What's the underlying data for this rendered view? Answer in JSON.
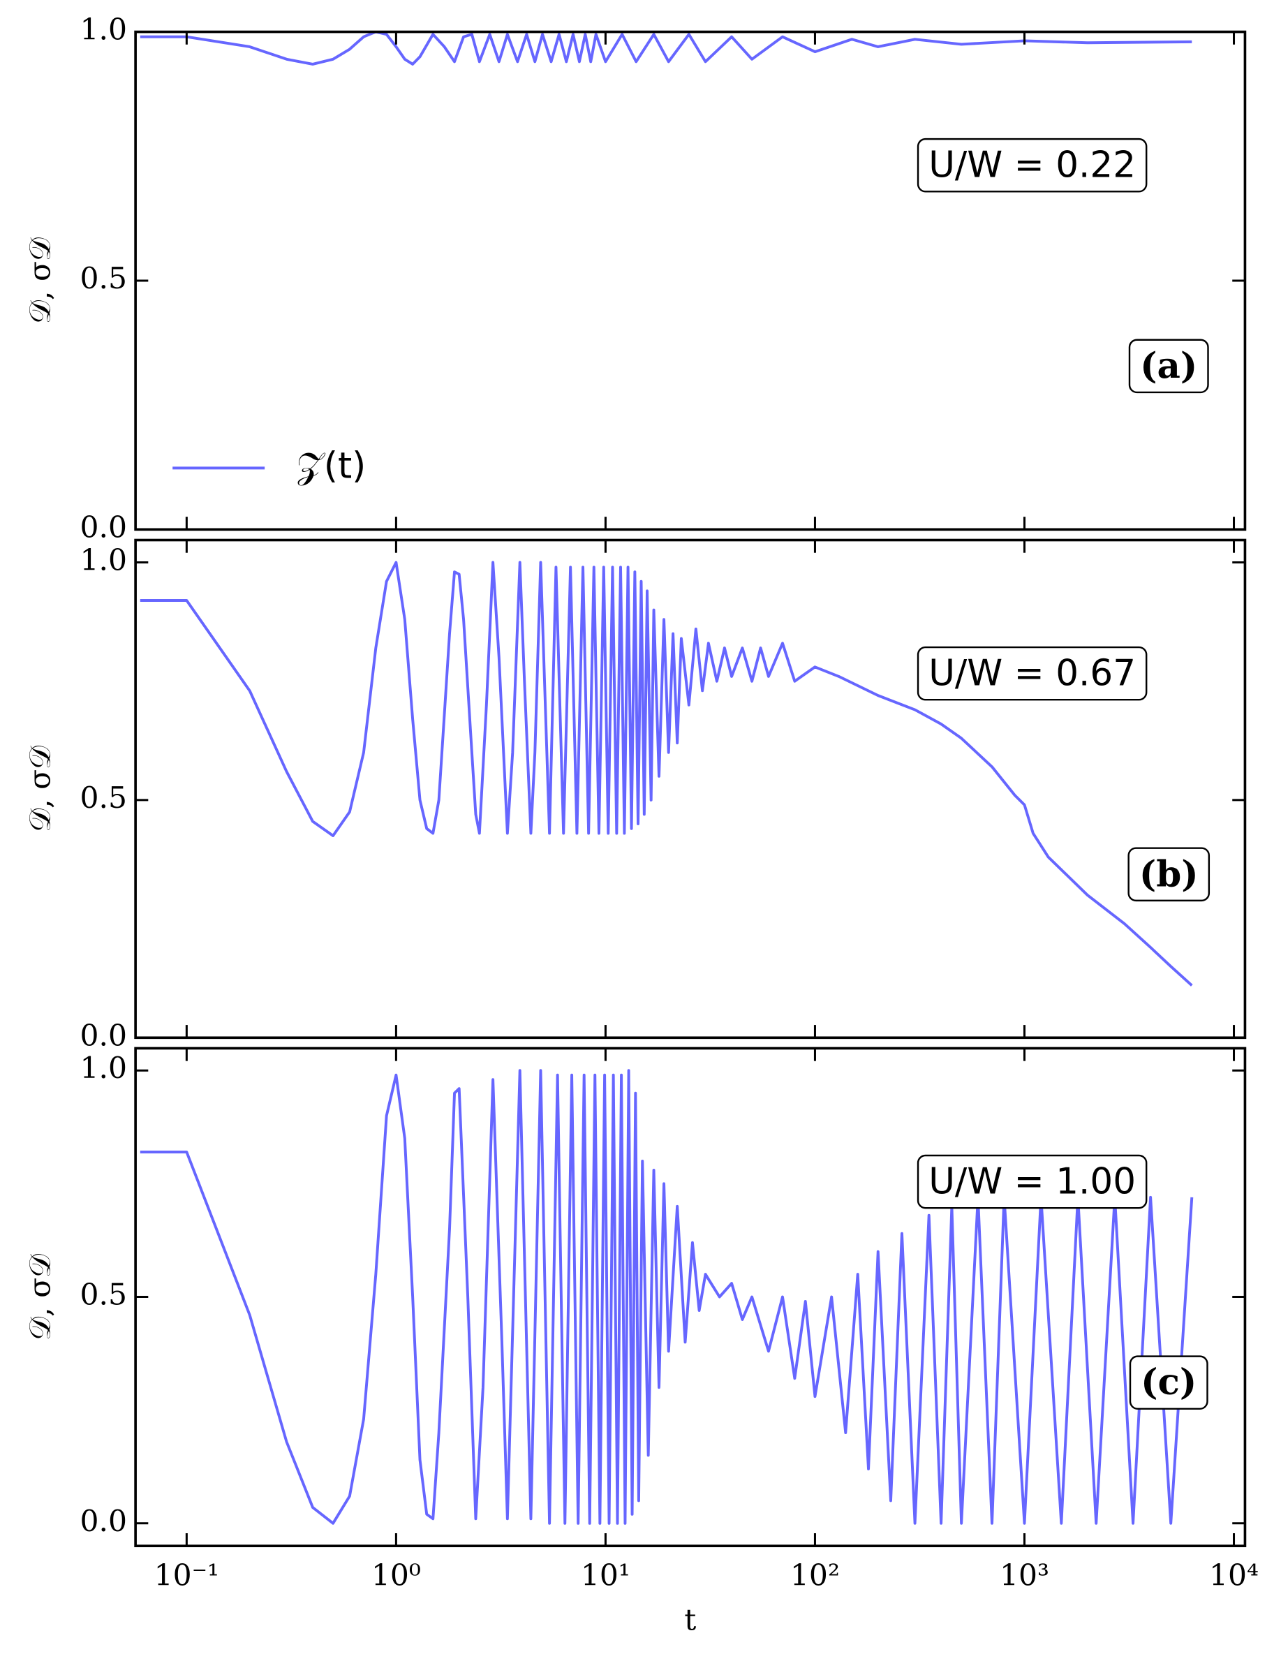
{
  "chart_data": [
    {
      "type": "line",
      "ylabel": "𝒟, σ𝒟",
      "annotation": "U/W = 0.22",
      "panel_label": "(a)",
      "log_x": true,
      "xtick_labels": false,
      "legend": "lower left",
      "xlim": [
        0.057,
        11300
      ],
      "ylim": [
        0,
        1
      ],
      "xticks": [
        0.1,
        1,
        10,
        100,
        1000,
        10000
      ],
      "yticks": [
        {
          "value": 0,
          "label": "0.0"
        },
        0.5,
        {
          "value": 1,
          "label": "1.0"
        }
      ],
      "x": [
        0.06,
        0.1,
        0.2,
        0.3,
        0.4,
        0.5,
        0.6,
        0.7,
        0.8,
        0.9,
        1.0,
        1.1,
        1.2,
        1.3,
        1.5,
        1.7,
        1.9,
        2.1,
        2.3,
        2.5,
        2.8,
        3.1,
        3.4,
        3.8,
        4.2,
        4.6,
        5,
        5.5,
        6,
        6.5,
        7,
        7.5,
        8,
        8.5,
        9,
        10,
        12,
        14,
        17,
        20,
        25,
        30,
        40,
        50,
        70,
        100,
        150,
        200,
        300,
        500,
        1000,
        2000,
        6300
      ],
      "series": [
        {
          "name": "𝒵(t)",
          "color": "#6666ff",
          "values": [
            0.99,
            0.99,
            0.97,
            0.945,
            0.935,
            0.945,
            0.965,
            0.99,
            1.0,
            0.995,
            0.97,
            0.945,
            0.935,
            0.95,
            0.995,
            0.97,
            0.94,
            0.99,
            0.995,
            0.94,
            0.995,
            0.94,
            0.995,
            0.94,
            0.995,
            0.94,
            0.995,
            0.94,
            0.995,
            0.94,
            0.995,
            0.94,
            0.995,
            0.94,
            0.995,
            0.94,
            0.995,
            0.94,
            0.995,
            0.94,
            0.995,
            0.94,
            0.99,
            0.945,
            0.99,
            0.96,
            0.985,
            0.97,
            0.985,
            0.975,
            0.982,
            0.978,
            0.98
          ]
        }
      ]
    },
    {
      "type": "line",
      "ylabel": "𝒟, σ𝒟",
      "annotation": "U/W = 0.67",
      "panel_label": "(b)",
      "log_x": true,
      "xtick_labels": false,
      "xlim": [
        0.057,
        11300
      ],
      "ylim": [
        0,
        1.047
      ],
      "xticks": [
        0.1,
        1,
        10,
        100,
        1000,
        10000
      ],
      "yticks": [
        {
          "value": 0,
          "label": "0.0"
        },
        0.5,
        {
          "value": 1,
          "label": "1.0"
        }
      ],
      "x": [
        0.06,
        0.1,
        0.2,
        0.3,
        0.4,
        0.5,
        0.6,
        0.7,
        0.8,
        0.9,
        1.0,
        1.1,
        1.2,
        1.3,
        1.4,
        1.5,
        1.6,
        1.7,
        1.8,
        1.9,
        2.0,
        2.1,
        2.3,
        2.4,
        2.5,
        2.7,
        2.9,
        3.1,
        3.4,
        3.6,
        3.9,
        4.1,
        4.4,
        4.6,
        4.9,
        5.4,
        5.8,
        6.3,
        6.8,
        7.3,
        7.8,
        8.3,
        8.8,
        9.3,
        9.8,
        10.3,
        10.8,
        11.3,
        11.8,
        12.3,
        12.8,
        13.3,
        13.8,
        14.3,
        14.8,
        15.3,
        15.8,
        16.5,
        17,
        18,
        19,
        20,
        21,
        22,
        23,
        25,
        27,
        29,
        31,
        34,
        37,
        40,
        45,
        50,
        55,
        60,
        70,
        80,
        100,
        130,
        200,
        300,
        400,
        500,
        700,
        900,
        1000,
        1100,
        1300,
        2000,
        3000,
        4000,
        5000,
        6300
      ],
      "series": [
        {
          "color": "#6666ff",
          "values": [
            0.92,
            0.92,
            0.73,
            0.56,
            0.455,
            0.425,
            0.475,
            0.6,
            0.82,
            0.96,
            1.0,
            0.88,
            0.67,
            0.5,
            0.44,
            0.43,
            0.5,
            0.68,
            0.85,
            0.98,
            0.975,
            0.88,
            0.6,
            0.47,
            0.43,
            0.7,
            1.0,
            0.8,
            0.43,
            0.6,
            1.0,
            0.75,
            0.43,
            0.6,
            1.0,
            0.43,
            0.99,
            0.43,
            0.99,
            0.43,
            0.99,
            0.43,
            0.99,
            0.43,
            0.99,
            0.43,
            0.99,
            0.43,
            0.99,
            0.43,
            0.99,
            0.44,
            0.98,
            0.45,
            0.96,
            0.47,
            0.94,
            0.5,
            0.9,
            0.55,
            0.88,
            0.6,
            0.85,
            0.62,
            0.84,
            0.7,
            0.86,
            0.73,
            0.83,
            0.75,
            0.82,
            0.76,
            0.82,
            0.75,
            0.82,
            0.76,
            0.83,
            0.75,
            0.78,
            0.76,
            0.72,
            0.69,
            0.66,
            0.63,
            0.57,
            0.51,
            0.49,
            0.43,
            0.38,
            0.3,
            0.24,
            0.19,
            0.15,
            0.11
          ]
        }
      ]
    },
    {
      "type": "line",
      "ylabel": "𝒟, σ𝒟",
      "annotation": "U/W = 1.00",
      "panel_label": "(c)",
      "log_x": true,
      "xtick_labels": true,
      "xlabel": "t",
      "xlim": [
        0.057,
        11300
      ],
      "ylim": [
        -0.05,
        1.049
      ],
      "xticks": [
        {
          "value": 0.1,
          "label": "10⁻¹"
        },
        {
          "value": 1,
          "label": "10⁰"
        },
        {
          "value": 10,
          "label": "10¹"
        },
        {
          "value": 100,
          "label": "10²"
        },
        {
          "value": 1000,
          "label": "10³"
        },
        {
          "value": 10000,
          "label": "10⁴"
        }
      ],
      "yticks": [
        {
          "value": 0,
          "label": "0.0"
        },
        0.5,
        {
          "value": 1,
          "label": "1.0"
        }
      ],
      "x": [
        0.06,
        0.1,
        0.2,
        0.3,
        0.4,
        0.5,
        0.6,
        0.7,
        0.8,
        0.9,
        1.0,
        1.1,
        1.2,
        1.3,
        1.4,
        1.5,
        1.6,
        1.8,
        1.9,
        2.0,
        2.2,
        2.4,
        2.6,
        2.9,
        3.2,
        3.4,
        3.9,
        4.4,
        4.9,
        5.4,
        5.9,
        6.4,
        6.9,
        7.4,
        7.9,
        8.4,
        8.9,
        9.4,
        9.9,
        10.4,
        10.9,
        11.4,
        11.9,
        12.4,
        12.9,
        13.4,
        13.9,
        14.4,
        15,
        16,
        17,
        18,
        19,
        20,
        22,
        24,
        26,
        28,
        30,
        35,
        40,
        45,
        50,
        60,
        70,
        80,
        90,
        100,
        120,
        140,
        160,
        180,
        200,
        230,
        260,
        300,
        350,
        400,
        450,
        500,
        600,
        700,
        800,
        1000,
        1200,
        1500,
        1800,
        2200,
        2700,
        3300,
        4000,
        5000,
        6300
      ],
      "series": [
        {
          "color": "#6666ff",
          "values": [
            0.82,
            0.82,
            0.46,
            0.18,
            0.035,
            0.0,
            0.06,
            0.23,
            0.55,
            0.9,
            0.99,
            0.85,
            0.5,
            0.14,
            0.02,
            0.01,
            0.2,
            0.65,
            0.95,
            0.96,
            0.5,
            0.01,
            0.3,
            0.98,
            0.4,
            0.01,
            1.0,
            0.01,
            1.0,
            0.0,
            0.99,
            0.0,
            0.99,
            0.0,
            0.99,
            0.0,
            0.99,
            0.0,
            0.99,
            0.0,
            0.99,
            0.0,
            0.99,
            0.0,
            1.0,
            0.02,
            0.95,
            0.05,
            0.8,
            0.15,
            0.78,
            0.3,
            0.75,
            0.38,
            0.7,
            0.4,
            0.62,
            0.47,
            0.55,
            0.5,
            0.53,
            0.45,
            0.5,
            0.38,
            0.5,
            0.32,
            0.49,
            0.28,
            0.5,
            0.2,
            0.55,
            0.12,
            0.6,
            0.05,
            0.64,
            0.0,
            0.68,
            0.0,
            0.7,
            0.0,
            0.72,
            0.0,
            0.72,
            0.0,
            0.72,
            0.0,
            0.72,
            0.0,
            0.72,
            0.0,
            0.72,
            0.0,
            0.72
          ]
        }
      ]
    }
  ]
}
